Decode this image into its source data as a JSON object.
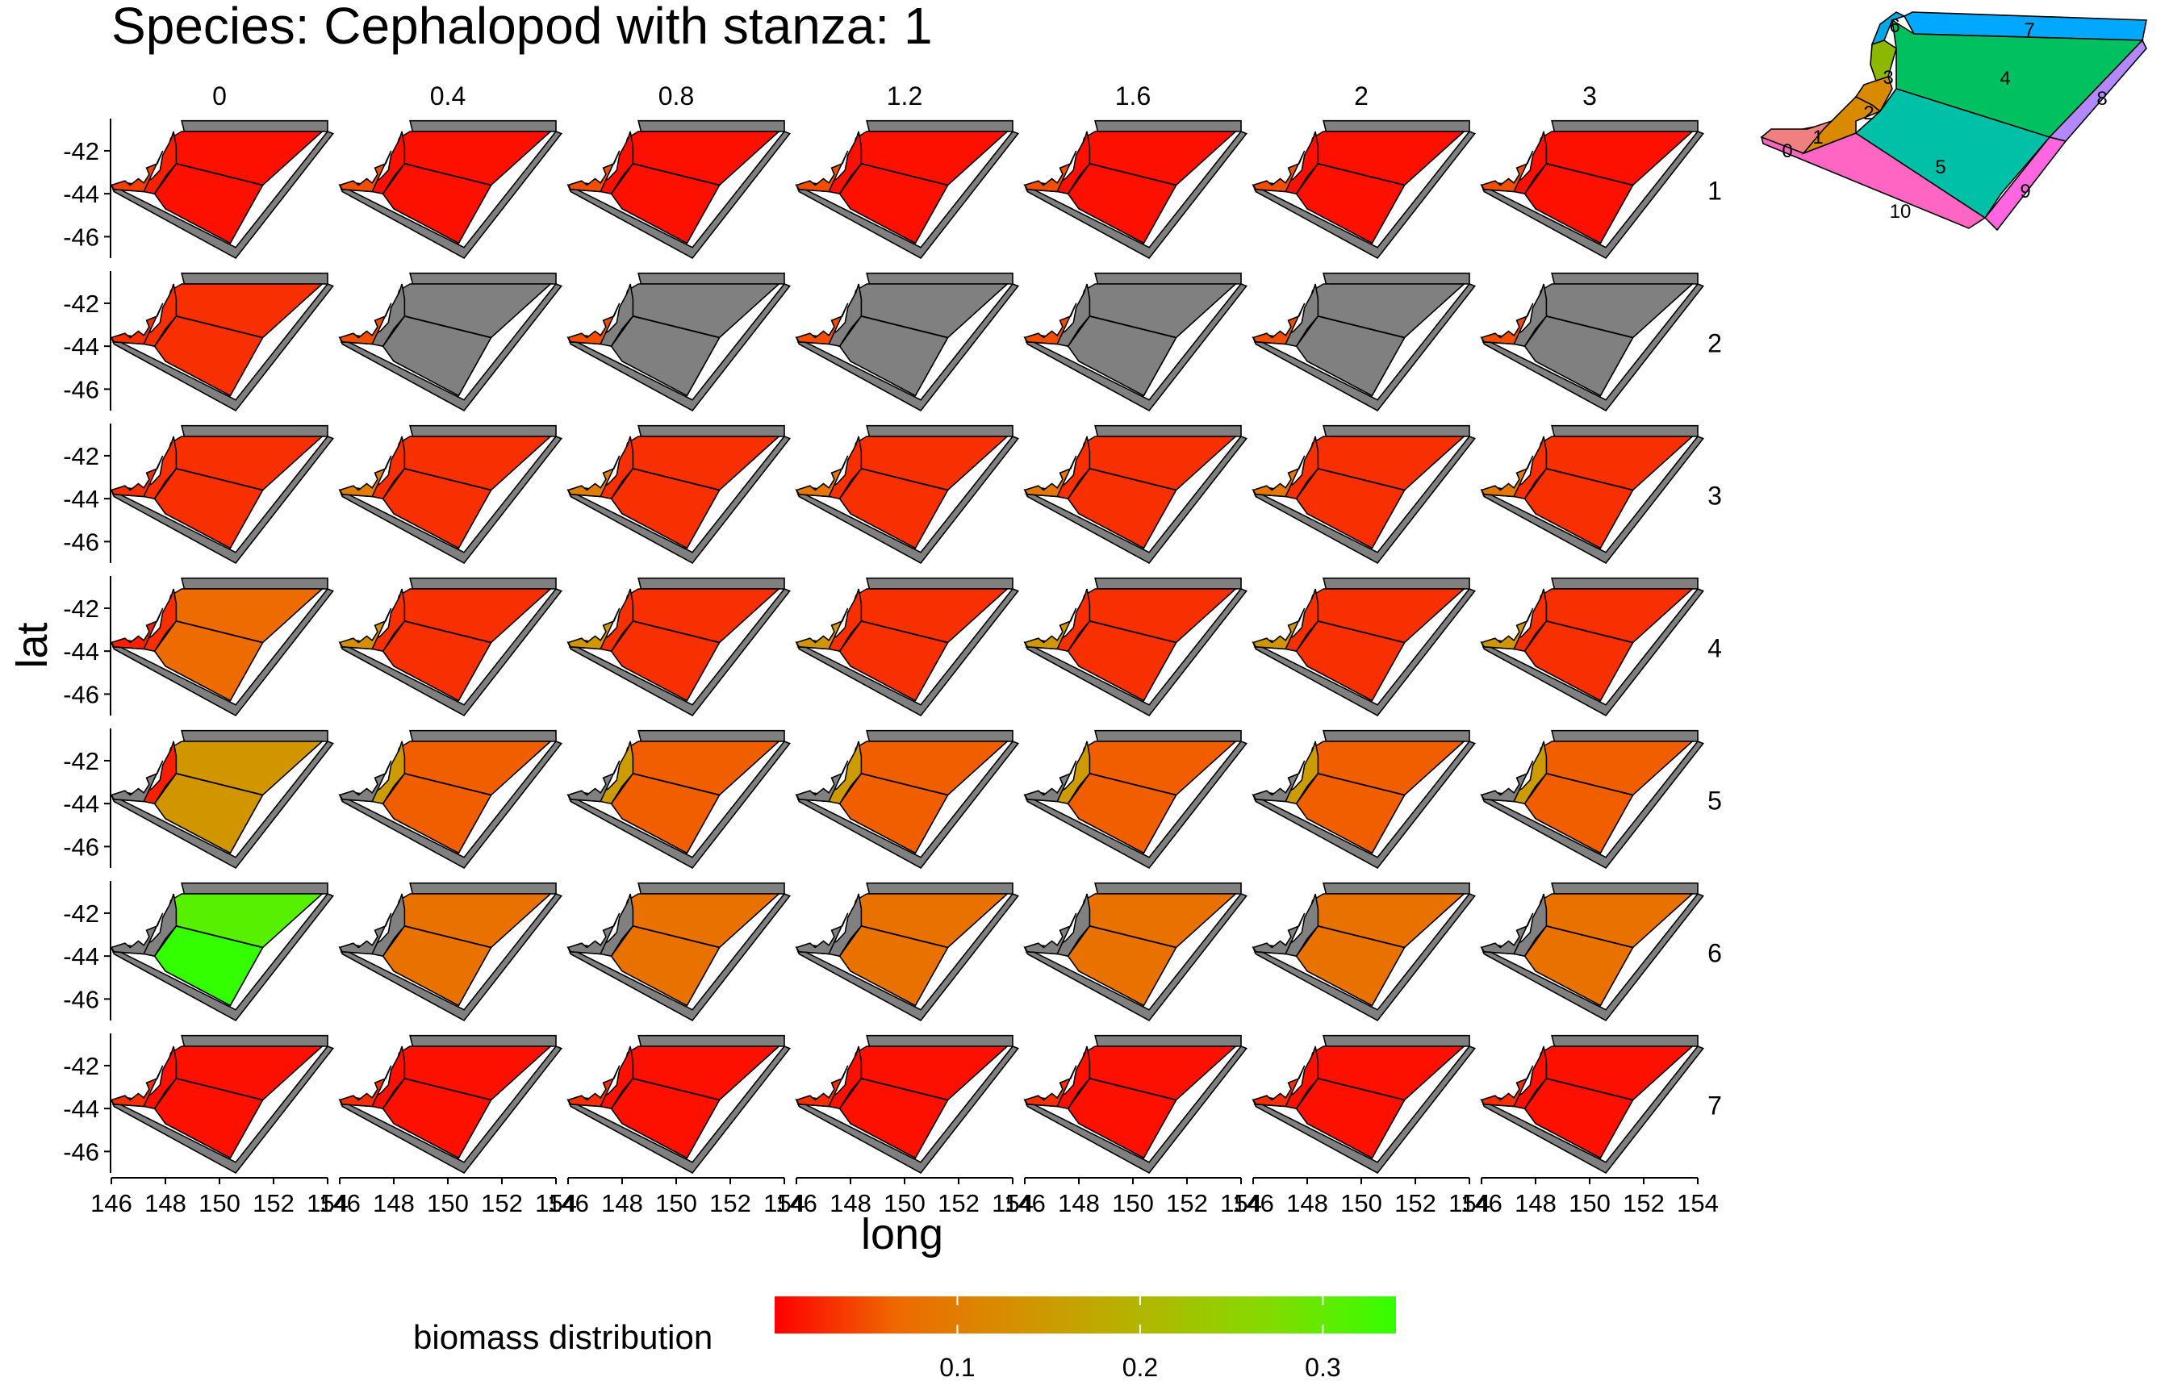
{
  "title": "Species: Cephalopod with stanza: 1",
  "chart_data": {
    "type": "heatmap",
    "title": "Species: Cephalopod with stanza: 1",
    "xlabel": "long",
    "ylabel": "lat",
    "x_ticks": [
      "146",
      "148",
      "150",
      "152",
      "154"
    ],
    "y_ticks": [
      "-42",
      "-44",
      "-46"
    ],
    "xlim": [
      146,
      154
    ],
    "ylim": [
      -47,
      -40.5
    ],
    "facet_columns": [
      "0",
      "0.4",
      "0.8",
      "1.2",
      "1.6",
      "2",
      "3"
    ],
    "facet_rows": [
      "1",
      "2",
      "3",
      "4",
      "5",
      "6",
      "7"
    ],
    "legend": {
      "title": "biomass distribution",
      "position": "bottom",
      "ticks": [
        "0.1",
        "0.2",
        "0.3"
      ],
      "tick_values": [
        0.1,
        0.2,
        0.3
      ],
      "range": [
        0.0,
        0.34
      ],
      "colors": [
        "#ff0000",
        "#ee6a00",
        "#d39300",
        "#b0b800",
        "#82dc00",
        "#33ff00"
      ]
    },
    "region_colors": {
      "0": "#4a4a4a",
      "1": "#4a4a4a",
      "2": "#4a4a4a",
      "3": "#4a4a4a"
    },
    "box_values_by_row": [
      [
        [
          0.04,
          0.02,
          0.01,
          0.01
        ],
        [
          0.05,
          0.01,
          0.01,
          0.01
        ],
        [
          0.05,
          0.01,
          0.01,
          0.01
        ],
        [
          0.05,
          0.01,
          0.01,
          0.01
        ],
        [
          0.05,
          0.01,
          0.01,
          0.01
        ],
        [
          0.05,
          0.01,
          0.01,
          0.01
        ],
        [
          0.05,
          0.01,
          0.01,
          0.01
        ]
      ],
      [
        [
          0.03,
          0.03,
          0.03,
          0.03
        ],
        [
          0.05,
          null,
          null,
          null
        ],
        [
          0.05,
          null,
          null,
          null
        ],
        [
          0.05,
          null,
          null,
          null
        ],
        [
          0.05,
          null,
          null,
          null
        ],
        [
          0.05,
          null,
          null,
          null
        ],
        [
          0.05,
          null,
          null,
          null
        ]
      ],
      [
        [
          0.03,
          0.03,
          0.03,
          0.03
        ],
        [
          0.1,
          0.03,
          0.03,
          0.03
        ],
        [
          0.1,
          0.03,
          0.03,
          0.03
        ],
        [
          0.09,
          0.03,
          0.03,
          0.03
        ],
        [
          0.09,
          0.03,
          0.03,
          0.03
        ],
        [
          0.09,
          0.03,
          0.03,
          0.03
        ],
        [
          0.09,
          0.03,
          0.03,
          0.03
        ]
      ],
      [
        [
          0.02,
          0.03,
          0.07,
          0.07
        ],
        [
          0.13,
          0.03,
          0.03,
          0.03
        ],
        [
          0.14,
          0.03,
          0.03,
          0.03
        ],
        [
          0.14,
          0.03,
          0.03,
          0.03
        ],
        [
          0.14,
          0.03,
          0.03,
          0.03
        ],
        [
          0.14,
          0.03,
          0.03,
          0.03
        ],
        [
          0.14,
          0.03,
          0.03,
          0.03
        ]
      ],
      [
        [
          null,
          0.02,
          0.14,
          0.14
        ],
        [
          null,
          0.15,
          0.06,
          0.06
        ],
        [
          null,
          0.15,
          0.06,
          0.06
        ],
        [
          null,
          0.15,
          0.06,
          0.06
        ],
        [
          null,
          0.15,
          0.06,
          0.06
        ],
        [
          null,
          0.15,
          0.06,
          0.06
        ],
        [
          null,
          0.15,
          0.06,
          0.06
        ]
      ],
      [
        [
          null,
          null,
          0.31,
          0.34
        ],
        [
          null,
          null,
          0.08,
          0.08
        ],
        [
          null,
          null,
          0.08,
          0.08
        ],
        [
          null,
          null,
          0.08,
          0.08
        ],
        [
          null,
          null,
          0.08,
          0.08
        ],
        [
          null,
          null,
          0.08,
          0.08
        ],
        [
          null,
          null,
          0.08,
          0.08
        ]
      ],
      [
        [
          0.03,
          0.01,
          0.01,
          0.01
        ],
        [
          0.03,
          0.01,
          0.01,
          0.01
        ],
        [
          0.03,
          0.01,
          0.01,
          0.01
        ],
        [
          0.03,
          0.01,
          0.01,
          0.01
        ],
        [
          0.03,
          0.01,
          0.01,
          0.01
        ],
        [
          0.03,
          0.01,
          0.01,
          0.01
        ],
        [
          0.03,
          0.01,
          0.01,
          0.01
        ]
      ]
    ],
    "value_order": [
      "box 0-1 (coast)",
      "box 2-3",
      "box 4",
      "box 5"
    ],
    "gray_color": "#808080",
    "inset_map": {
      "boxes": [
        {
          "label": "0",
          "color": "#f08080"
        },
        {
          "label": "1",
          "color": "#d98a00"
        },
        {
          "label": "2",
          "color": "#d98a00"
        },
        {
          "label": "3",
          "color": "#8db800"
        },
        {
          "label": "4",
          "color": "#00c060"
        },
        {
          "label": "5",
          "color": "#00c0a8"
        },
        {
          "label": "6",
          "color": "#00a8e8"
        },
        {
          "label": "7",
          "color": "#00a8ff"
        },
        {
          "label": "8",
          "color": "#b388ff"
        },
        {
          "label": "9",
          "color": "#ff66e0"
        },
        {
          "label": "10",
          "color": "#ff66c4"
        }
      ]
    }
  }
}
